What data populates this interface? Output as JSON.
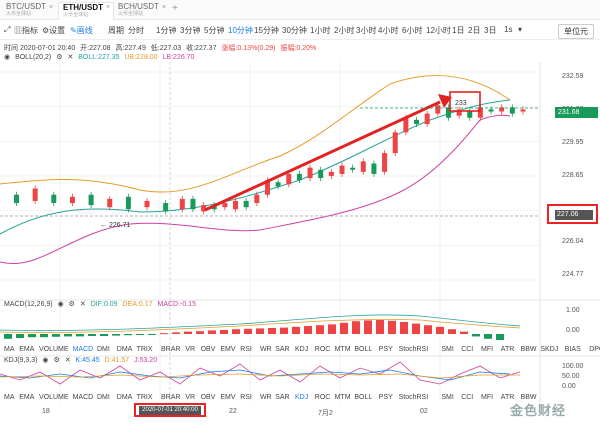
{
  "tabs": [
    {
      "symbol": "BTC/USDT",
      "exchange": "火币全球站"
    },
    {
      "symbol": "ETH/USDT",
      "exchange": "火币全球站"
    },
    {
      "symbol": "BCH/USDT",
      "exchange": "火币全球站"
    }
  ],
  "toolbar": {
    "indicator": "指标",
    "settings": "设置",
    "draw": "画线",
    "period_label": "周期",
    "periods": [
      "分时",
      "1分钟",
      "3分钟",
      "5分钟",
      "10分钟",
      "15分钟",
      "30分钟",
      "1小时",
      "2小时",
      "3小时",
      "4小时",
      "6小时",
      "12小时",
      "1日",
      "2日",
      "3日",
      "1s"
    ],
    "active_period": "10分钟",
    "currency": "单位元"
  },
  "ohlc": {
    "time": "时间 2020-07-01 20:40",
    "open": "开:227.08",
    "high": "高:227.49",
    "low": "低:227.03",
    "close": "收:227.37",
    "change": "涨幅:0.13%(0.29)",
    "amplitude": "振幅:0.20%"
  },
  "boll": {
    "label": "BOLL(20,2)",
    "boll": "BOLL:227.35",
    "ub": "UB:228.00",
    "lb": "LB:226.70"
  },
  "macd": {
    "label": "MACD(12,26,9)",
    "dif": "DIF:0.09",
    "dea": "DEA:0.17",
    "macd": "MACD:-0.15"
  },
  "kdj": {
    "label": "KDJ(9,3,3)",
    "k": "K:45.45",
    "d": "D:41.57",
    "j": "J:53.20"
  },
  "indicator_row_1": [
    "MA",
    "EMA",
    "VOLUME",
    "MACD",
    "DMI",
    "DMA",
    "TRIX",
    "BRAR",
    "VR",
    "OBV",
    "EMV",
    "RSI",
    "WR",
    "SAR",
    "KDJ",
    "ROC",
    "MTM",
    "BOLL",
    "PSY",
    "StochRSI",
    "SMI",
    "CCI",
    "MFI",
    "ATR",
    "BBW",
    "SKDJ",
    "BIAS",
    "DPO"
  ],
  "indicator_row_2": [
    "MA",
    "EMA",
    "VOLUME",
    "MACD",
    "DMI",
    "DMA",
    "TRIX",
    "BRAR",
    "VR",
    "OBV",
    "EMV",
    "RSI",
    "WR",
    "SAR",
    "KDJ",
    "ROC",
    "MTM",
    "BOLL",
    "PSY",
    "StochRSI",
    "SMI",
    "CCI",
    "MFI",
    "ATR",
    "BBW"
  ],
  "price_axis": [
    "232.59",
    "231.27",
    "229.95",
    "228.65",
    "227.35",
    "226.04",
    "224.77"
  ],
  "current_price": "231.68",
  "crosshair_price": "227.06",
  "crosshair_date": "2020-07-01 20:40:00",
  "min_marker": "← 226.71",
  "max_marker": "233",
  "macd_axis": [
    "1.00",
    "0.00"
  ],
  "kdj_axis": [
    "100.00",
    "50.00",
    "0.00"
  ],
  "date_axis": [
    "18",
    "22",
    "7月2",
    "02"
  ],
  "watermark": "金色财经",
  "colors": {
    "up": "#ee4444",
    "down": "#1a9a5a",
    "boll_mid": "#27a59a",
    "boll_upper": "#e69a2a",
    "boll_lower": "#d040a0",
    "highlight": "#e22222",
    "accent": "#1a7ce8"
  },
  "chart_data": {
    "type": "candlestick",
    "ylim": [
      223.5,
      233.5
    ],
    "candles": [
      [
        227.6,
        227.2
      ],
      [
        227.3,
        227.9
      ],
      [
        227.6,
        227.2
      ],
      [
        227.2,
        227.5
      ],
      [
        227.6,
        227.1
      ],
      [
        227.0,
        227.4
      ],
      [
        227.5,
        226.9
      ],
      [
        227.0,
        227.3
      ],
      [
        227.2,
        226.8
      ],
      [
        226.9,
        227.4
      ],
      [
        227.4,
        226.9
      ],
      [
        226.8,
        227.1
      ],
      [
        227.1,
        226.9
      ],
      [
        227.0,
        227.2
      ],
      [
        226.9,
        227.3
      ],
      [
        227.3,
        227.0
      ],
      [
        227.2,
        227.6
      ],
      [
        227.6,
        228.3
      ],
      [
        228.2,
        228.0
      ],
      [
        228.1,
        228.6
      ],
      [
        228.6,
        228.3
      ],
      [
        228.4,
        228.9
      ],
      [
        228.8,
        228.4
      ],
      [
        228.5,
        228.7
      ],
      [
        228.6,
        229.0
      ],
      [
        228.9,
        228.8
      ],
      [
        228.7,
        229.2
      ],
      [
        229.1,
        228.6
      ],
      [
        228.7,
        229.6
      ],
      [
        229.6,
        230.6
      ],
      [
        230.6,
        231.3
      ],
      [
        231.2,
        231.0
      ],
      [
        231.0,
        231.5
      ],
      [
        231.5,
        231.9
      ],
      [
        231.8,
        231.3
      ],
      [
        231.4,
        231.7
      ],
      [
        231.6,
        231.3
      ],
      [
        231.3,
        231.8
      ],
      [
        231.7,
        231.6
      ],
      [
        231.6,
        231.8
      ],
      [
        231.8,
        231.5
      ],
      [
        231.6,
        231.7
      ]
    ],
    "macd_hist": [
      -0.12,
      -0.1,
      -0.08,
      -0.08,
      -0.07,
      -0.06,
      -0.06,
      -0.05,
      -0.05,
      -0.04,
      -0.03,
      -0.02,
      -0.01,
      0.02,
      0.04,
      0.06,
      0.07,
      0.09,
      0.1,
      0.12,
      0.13,
      0.14,
      0.15,
      0.16,
      0.18,
      0.2,
      0.22,
      0.24,
      0.28,
      0.32,
      0.34,
      0.35,
      0.33,
      0.3,
      0.26,
      0.22,
      0.18,
      0.12,
      0.06,
      -0.06,
      -0.12,
      -0.15
    ]
  }
}
